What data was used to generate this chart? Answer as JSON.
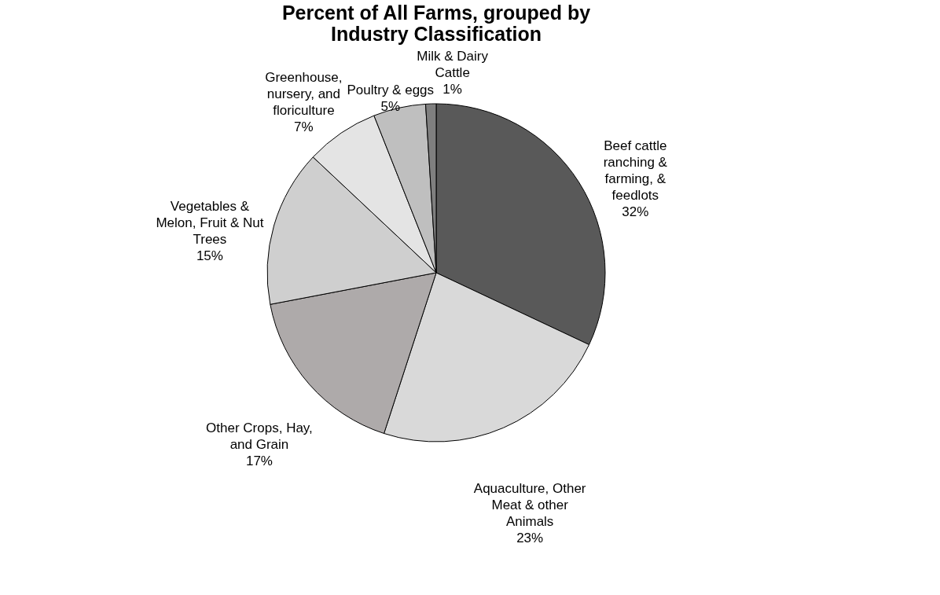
{
  "chart_data": {
    "type": "pie",
    "title": "Percent of All Farms, grouped by Industry Classification",
    "categories": [
      "Beef cattle ranching & farming, & feedlots",
      "Aquaculture, Other Meat & other Animals",
      "Other Crops, Hay, and Grain",
      "Vegetables & Melon, Fruit & Nut Trees",
      "Greenhouse, nursery, and floriculture",
      "Poultry & eggs",
      "Milk & Dairy Cattle"
    ],
    "values": [
      32,
      23,
      17,
      15,
      7,
      5,
      1
    ],
    "colors": [
      "#595959",
      "#d9d9d9",
      "#aeaaaa",
      "#cfcfcf",
      "#e4e4e4",
      "#bfbfbf",
      "#7f7f7f"
    ],
    "value_labels": [
      "32%",
      "23%",
      "17%",
      "15%",
      "7%",
      "5%",
      "1%"
    ],
    "legend": false
  }
}
